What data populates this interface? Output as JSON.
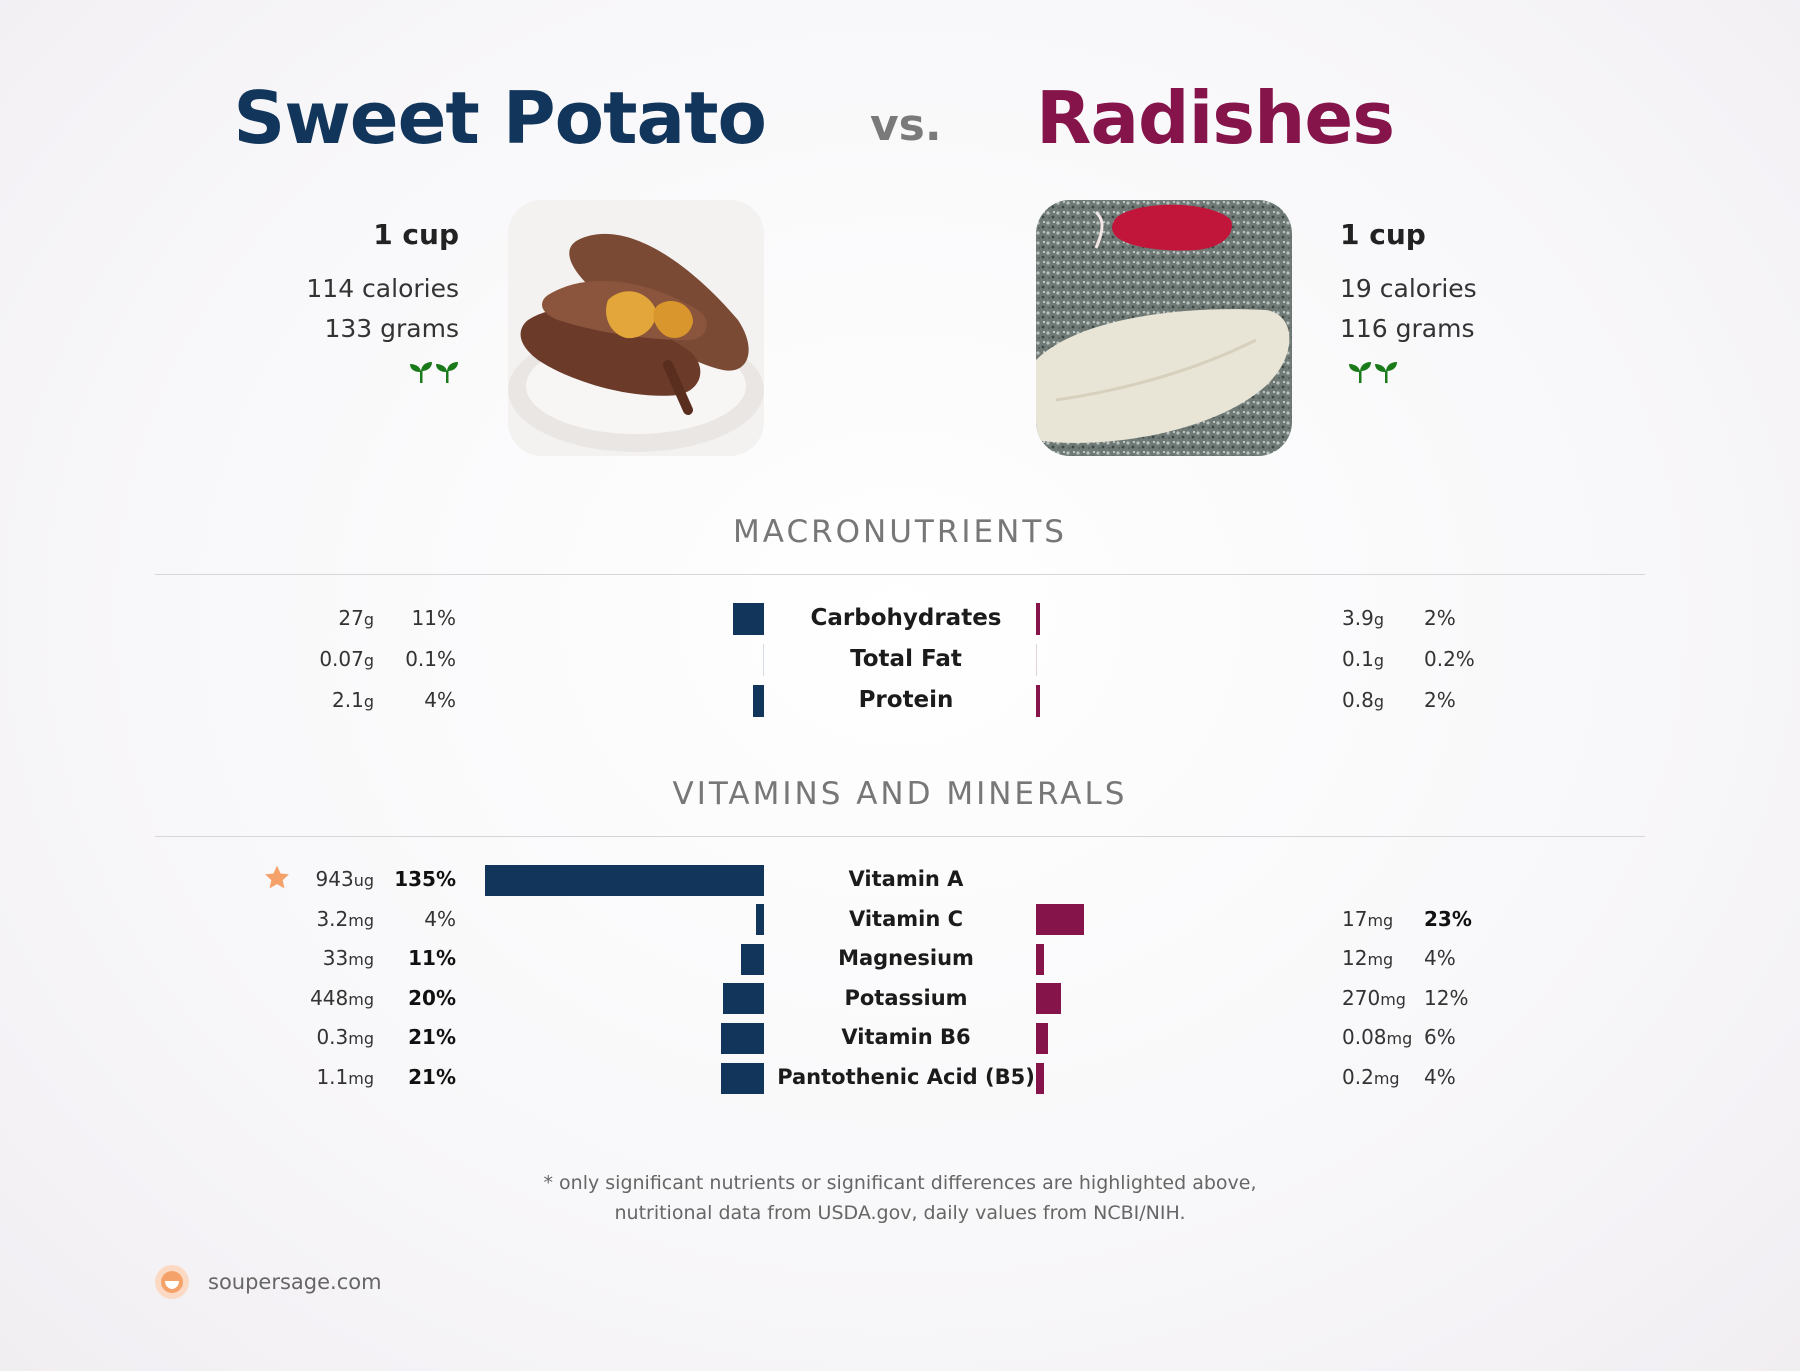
{
  "food_left": {
    "name": "Sweet Potato",
    "serving": "1 cup",
    "calories": "114 calories",
    "grams": "133 grams",
    "color": "#12355b"
  },
  "vs": "vs.",
  "food_right": {
    "name": "Radishes",
    "serving": "1 cup",
    "calories": "19 calories",
    "grams": "116 grams",
    "color": "#85144b"
  },
  "icons": {
    "sprout": "sprout-icon",
    "star": "star-icon",
    "logo": "soupersage-logo-icon"
  },
  "sections": {
    "macros": "MACRONUTRIENTS",
    "vitamins": "VITAMINS AND MINERALS"
  },
  "chart_data": [
    {
      "type": "bar",
      "title": "MACRONUTRIENTS",
      "categories": [
        "Carbohydrates",
        "Total Fat",
        "Protein"
      ],
      "series": [
        {
          "name": "Sweet Potato",
          "amount": [
            "27",
            "0.07",
            "2.1"
          ],
          "units": [
            "g",
            "g",
            "g"
          ],
          "percent_labels": [
            "11%",
            "0.1%",
            "4%"
          ],
          "values": [
            11,
            0.1,
            4
          ]
        },
        {
          "name": "Radishes",
          "amount": [
            "3.9",
            "0.1",
            "0.8"
          ],
          "units": [
            "g",
            "g",
            "g"
          ],
          "percent_labels": [
            "2%",
            "0.2%",
            "2%"
          ],
          "values": [
            2,
            0.2,
            2
          ]
        }
      ]
    },
    {
      "type": "bar",
      "title": "VITAMINS AND MINERALS",
      "categories": [
        "Vitamin A",
        "Vitamin C",
        "Magnesium",
        "Potassium",
        "Vitamin B6",
        "Pantothenic Acid (B5)"
      ],
      "series": [
        {
          "name": "Sweet Potato",
          "amount": [
            "943",
            "3.2",
            "33",
            "448",
            "0.3",
            "1.1"
          ],
          "units": [
            "ug",
            "mg",
            "mg",
            "mg",
            "mg",
            "mg"
          ],
          "percent_labels": [
            "135%",
            "4%",
            "11%",
            "20%",
            "21%",
            "21%"
          ],
          "values": [
            135,
            4,
            11,
            20,
            21,
            21
          ],
          "bold": [
            true,
            false,
            true,
            true,
            true,
            true
          ],
          "starred": [
            true,
            false,
            false,
            false,
            false,
            false
          ]
        },
        {
          "name": "Radishes",
          "amount": [
            "",
            "17",
            "12",
            "270",
            "0.08",
            "0.2"
          ],
          "units": [
            "",
            "mg",
            "mg",
            "mg",
            "mg",
            "mg"
          ],
          "percent_labels": [
            "",
            "23%",
            "4%",
            "12%",
            "6%",
            "4%"
          ],
          "values": [
            0,
            23,
            4,
            12,
            6,
            4
          ],
          "bold": [
            false,
            true,
            false,
            false,
            false,
            false
          ]
        }
      ]
    }
  ],
  "footnote": {
    "line1": "* only significant nutrients or significant differences are highlighted above,",
    "line2": "nutritional data from USDA.gov, daily values from NCBI/NIH."
  },
  "site": "soupersage.com"
}
